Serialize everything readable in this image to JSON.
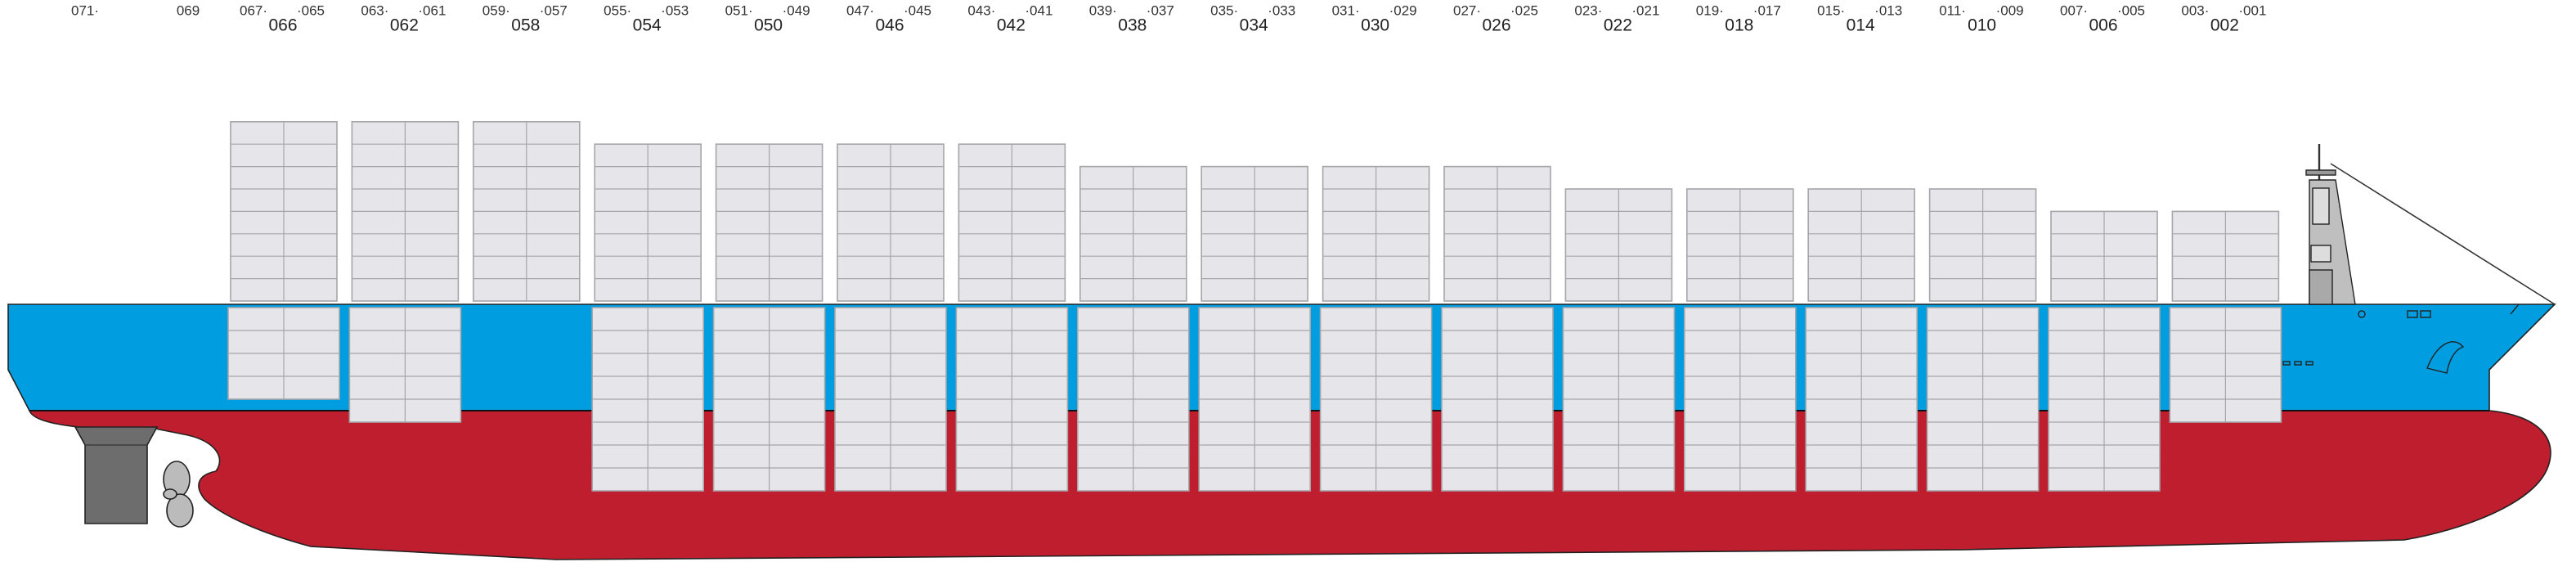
{
  "extra_labels": [
    "071·",
    "069"
  ],
  "bays": [
    {
      "fore": "067·",
      "aft": "·065",
      "label": "066"
    },
    {
      "fore": "063·",
      "aft": "·061",
      "label": "062"
    },
    {
      "fore": "059·",
      "aft": "·057",
      "label": "058"
    },
    {
      "fore": "055·",
      "aft": "·053",
      "label": "054"
    },
    {
      "fore": "051·",
      "aft": "·049",
      "label": "050"
    },
    {
      "fore": "047·",
      "aft": "·045",
      "label": "046"
    },
    {
      "fore": "043·",
      "aft": "·041",
      "label": "042"
    },
    {
      "fore": "039·",
      "aft": "·037",
      "label": "038"
    },
    {
      "fore": "035·",
      "aft": "·033",
      "label": "034"
    },
    {
      "fore": "031·",
      "aft": "·029",
      "label": "030"
    },
    {
      "fore": "027·",
      "aft": "·025",
      "label": "026"
    },
    {
      "fore": "023·",
      "aft": "·021",
      "label": "022"
    },
    {
      "fore": "019·",
      "aft": "·017",
      "label": "018"
    },
    {
      "fore": "015·",
      "aft": "·013",
      "label": "014"
    },
    {
      "fore": "011·",
      "aft": "·009",
      "label": "010"
    },
    {
      "fore": "007·",
      "aft": "·005",
      "label": "006"
    },
    {
      "fore": "003·",
      "aft": "·001",
      "label": "002"
    }
  ]
}
